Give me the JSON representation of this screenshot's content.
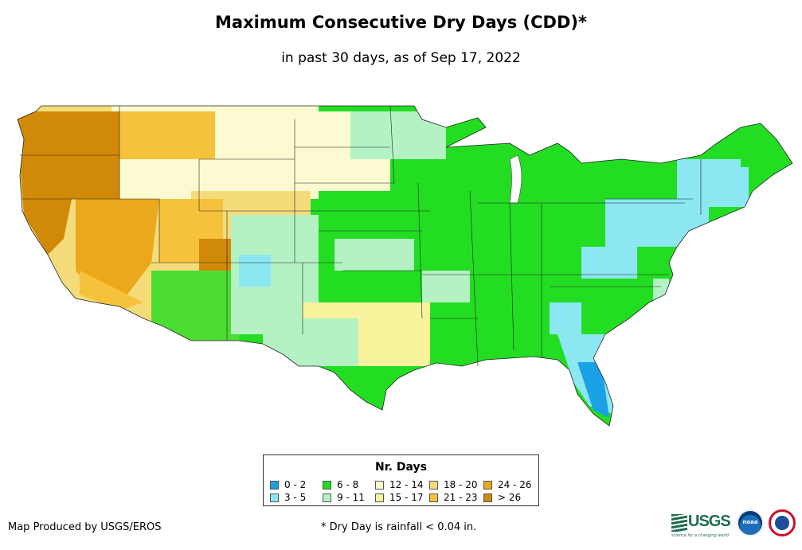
{
  "title": "Maximum Consecutive Dry Days (CDD)*",
  "subtitle": "in past 30 days, as of Sep 17, 2022",
  "legend": {
    "title": "Nr. Days",
    "items": [
      {
        "label": "0 - 2",
        "color": "#1aa1e6"
      },
      {
        "label": "3 - 5",
        "color": "#8be8f2"
      },
      {
        "label": "6 - 8",
        "color": "#22dd22"
      },
      {
        "label": "9 - 11",
        "color": "#b4f2c4"
      },
      {
        "label": "12 - 14",
        "color": "#fbfad0"
      },
      {
        "label": "15 - 17",
        "color": "#f8f39c"
      },
      {
        "label": "18 - 20",
        "color": "#f5dc7a"
      },
      {
        "label": "21 - 23",
        "color": "#f6c23c"
      },
      {
        "label": "24 - 26",
        "color": "#eba81c"
      },
      {
        "label": "> 26",
        "color": "#d18a07"
      }
    ]
  },
  "credit": "Map Produced by USGS/EROS",
  "footnote": "* Dry Day is rainfall < 0.04 in.",
  "logos": {
    "usgs": "USGS",
    "usgs_tagline": "science for a changing world",
    "noaa": "noaa",
    "nws": "National Weather Service"
  },
  "icons": [
    "usgs-logo-icon",
    "noaa-logo-icon",
    "nws-logo-icon"
  ]
}
